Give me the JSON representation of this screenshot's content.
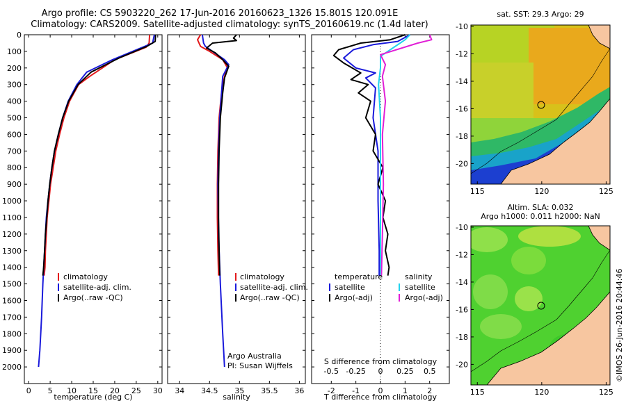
{
  "header": {
    "line1": "Argo profile: CS 5903220_262 17-Jun-2016 20160623_1326 15.801S 120.091E",
    "line2": "Climatology: CARS2009. Satellite-adjusted climatology: synTS_20160619.nc (1.4d later)"
  },
  "colors": {
    "climatology": "#e31a1c",
    "satellite": "#1a1adb",
    "argo": "#000000",
    "salinity_satellite": "#22d3ee",
    "salinity_argo": "#e11fd6",
    "land": "#f7c6a0"
  },
  "chart_data": [
    {
      "type": "line",
      "name": "temperature-panel",
      "xlabel": "temperature (deg C)",
      "ylabel": "",
      "xlim": [
        -1,
        31
      ],
      "ylim": [
        0,
        2100
      ],
      "y_inverted": true,
      "xticks": [
        0,
        5,
        10,
        15,
        20,
        25,
        30
      ],
      "yticks": [
        0,
        100,
        200,
        300,
        400,
        500,
        600,
        700,
        800,
        900,
        1000,
        1100,
        1200,
        1300,
        1400,
        1500,
        1600,
        1700,
        1800,
        1900,
        2000
      ],
      "legend": [
        "climatology",
        "satellite-adj. clim.",
        "Argo(..raw -QC)"
      ],
      "series": [
        {
          "name": "climatology",
          "color": "#e31a1c",
          "points": [
            [
              28.1,
              0
            ],
            [
              28.0,
              50
            ],
            [
              27.3,
              75
            ],
            [
              20,
              150
            ],
            [
              14.2,
              250
            ],
            [
              11.6,
              300
            ],
            [
              9.5,
              400
            ],
            [
              8.2,
              500
            ],
            [
              7.2,
              600
            ],
            [
              6.3,
              700
            ],
            [
              5.7,
              800
            ],
            [
              5.1,
              900
            ],
            [
              4.7,
              1000
            ],
            [
              4.3,
              1100
            ],
            [
              4.1,
              1200
            ],
            [
              3.9,
              1300
            ],
            [
              3.8,
              1400
            ],
            [
              3.6,
              1450
            ]
          ]
        },
        {
          "name": "satellite-adj. clim.",
          "color": "#1a1adb",
          "points": [
            [
              29.2,
              0
            ],
            [
              28.8,
              50
            ],
            [
              26.5,
              75
            ],
            [
              19.5,
              150
            ],
            [
              13.5,
              225
            ],
            [
              11.2,
              300
            ],
            [
              9.2,
              400
            ],
            [
              7.9,
              500
            ],
            [
              6.9,
              600
            ],
            [
              6.0,
              700
            ],
            [
              5.4,
              800
            ],
            [
              4.9,
              900
            ],
            [
              4.5,
              1000
            ],
            [
              4.1,
              1100
            ],
            [
              3.9,
              1200
            ],
            [
              3.7,
              1300
            ],
            [
              3.5,
              1400
            ],
            [
              3.3,
              1500
            ],
            [
              3.0,
              1700
            ],
            [
              2.6,
              1900
            ],
            [
              2.3,
              2000
            ]
          ]
        },
        {
          "name": "Argo(..raw -QC)",
          "color": "#000000",
          "points": [
            [
              29.5,
              0
            ],
            [
              29.4,
              40
            ],
            [
              27.5,
              70
            ],
            [
              21.0,
              140
            ],
            [
              14.5,
              225
            ],
            [
              11.5,
              300
            ],
            [
              9.3,
              400
            ],
            [
              7.9,
              500
            ],
            [
              6.9,
              600
            ],
            [
              6.0,
              700
            ],
            [
              5.4,
              800
            ],
            [
              4.9,
              900
            ],
            [
              4.5,
              1000
            ],
            [
              4.2,
              1100
            ],
            [
              3.9,
              1200
            ],
            [
              3.7,
              1300
            ],
            [
              3.5,
              1400
            ],
            [
              3.3,
              1450
            ]
          ]
        }
      ]
    },
    {
      "type": "line",
      "name": "salinity-panel",
      "xlabel": "salinity",
      "xlim": [
        33.8,
        36.1
      ],
      "ylim": [
        0,
        2100
      ],
      "y_inverted": true,
      "xticks": [
        34,
        34.5,
        35,
        35.5,
        36
      ],
      "legend": [
        "climatology",
        "satellite-adj. clim.",
        "Argo(..raw -QC)"
      ],
      "annotation": [
        "Argo Australia",
        "PI: Susan Wijffels"
      ],
      "series": [
        {
          "name": "climatology",
          "color": "#e31a1c",
          "points": [
            [
              34.35,
              0
            ],
            [
              34.3,
              30
            ],
            [
              34.35,
              70
            ],
            [
              34.5,
              100
            ],
            [
              34.72,
              150
            ],
            [
              34.8,
              200
            ],
            [
              34.75,
              250
            ],
            [
              34.7,
              350
            ],
            [
              34.66,
              500
            ],
            [
              34.64,
              700
            ],
            [
              34.63,
              900
            ],
            [
              34.63,
              1100
            ],
            [
              34.64,
              1300
            ],
            [
              34.65,
              1450
            ]
          ]
        },
        {
          "name": "satellite-adj. clim.",
          "color": "#1a1adb",
          "points": [
            [
              34.38,
              0
            ],
            [
              34.4,
              50
            ],
            [
              34.43,
              70
            ],
            [
              34.75,
              150
            ],
            [
              34.82,
              180
            ],
            [
              34.72,
              250
            ],
            [
              34.7,
              350
            ],
            [
              34.67,
              500
            ],
            [
              34.65,
              700
            ],
            [
              34.64,
              900
            ],
            [
              34.65,
              1200
            ],
            [
              34.68,
              1500
            ],
            [
              34.72,
              1800
            ],
            [
              34.75,
              2000
            ]
          ]
        },
        {
          "name": "Argo(..raw -QC)",
          "color": "#000000",
          "points": [
            [
              34.95,
              0
            ],
            [
              34.9,
              20
            ],
            [
              34.95,
              35
            ],
            [
              34.55,
              50
            ],
            [
              34.45,
              80
            ],
            [
              34.6,
              110
            ],
            [
              34.72,
              150
            ],
            [
              34.82,
              190
            ],
            [
              34.75,
              260
            ],
            [
              34.72,
              350
            ],
            [
              34.68,
              500
            ],
            [
              34.66,
              700
            ],
            [
              34.65,
              900
            ],
            [
              34.65,
              1100
            ],
            [
              34.66,
              1300
            ],
            [
              34.67,
              1450
            ]
          ]
        }
      ]
    },
    {
      "type": "line",
      "name": "difference-panel",
      "xlabel": "T difference from climatology",
      "x2label": "S difference from climatology",
      "xlim": [
        -2.8,
        2.8
      ],
      "ylim": [
        0,
        2100
      ],
      "y_inverted": true,
      "xticks": [
        -2,
        -1,
        0,
        1,
        2
      ],
      "x2ticks_labels": [
        "-0.5",
        "-0.25",
        "0",
        "0.25",
        "0.5"
      ],
      "legend_title_left": "temperature",
      "legend_title_right": "salinity",
      "legend": [
        "satellite",
        "Argo(-adj)",
        "satellite",
        "Argo(-adj)"
      ],
      "series": [
        {
          "name": "temperature satellite",
          "color": "#1a1adb",
          "points": [
            [
              1.2,
              0
            ],
            [
              0.7,
              40
            ],
            [
              -0.3,
              60
            ],
            [
              -1.1,
              90
            ],
            [
              -1.5,
              140
            ],
            [
              -1.0,
              200
            ],
            [
              -0.2,
              230
            ],
            [
              -0.6,
              260
            ],
            [
              -0.2,
              320
            ],
            [
              -0.3,
              500
            ],
            [
              -0.1,
              700
            ],
            [
              -0.1,
              1000
            ],
            [
              -0.05,
              1300
            ],
            [
              -0.05,
              1450
            ]
          ]
        },
        {
          "name": "temperature Argo(-adj)",
          "color": "#000000",
          "points": [
            [
              1.0,
              0
            ],
            [
              0.4,
              30
            ],
            [
              -0.8,
              50
            ],
            [
              -1.7,
              90
            ],
            [
              -1.9,
              125
            ],
            [
              -1.5,
              170
            ],
            [
              -0.8,
              230
            ],
            [
              -1.2,
              270
            ],
            [
              -0.5,
              300
            ],
            [
              -0.9,
              350
            ],
            [
              -0.4,
              400
            ],
            [
              -0.6,
              500
            ],
            [
              -0.2,
              600
            ],
            [
              -0.3,
              700
            ],
            [
              0.1,
              800
            ],
            [
              -0.1,
              900
            ],
            [
              0.2,
              1000
            ],
            [
              0.1,
              1100
            ],
            [
              0.3,
              1200
            ],
            [
              0.2,
              1300
            ],
            [
              0.35,
              1400
            ],
            [
              0.3,
              1450
            ]
          ]
        },
        {
          "name": "salinity satellite",
          "color": "#22d3ee",
          "points": [
            [
              0.3,
              0
            ],
            [
              0.25,
              30
            ],
            [
              0.2,
              50
            ],
            [
              0.0,
              130
            ],
            [
              0.0,
              200
            ],
            [
              -0.02,
              300
            ],
            [
              0.0,
              500
            ],
            [
              0.0,
              800
            ],
            [
              0.0,
              1100
            ],
            [
              0.0,
              1450
            ]
          ]
        },
        {
          "name": "salinity Argo(-adj)",
          "color": "#e11fd6",
          "points": [
            [
              0.5,
              0
            ],
            [
              0.52,
              30
            ],
            [
              0.38,
              50
            ],
            [
              0.0,
              120
            ],
            [
              0.05,
              180
            ],
            [
              0.02,
              250
            ],
            [
              0.05,
              400
            ],
            [
              0.02,
              600
            ],
            [
              0.03,
              900
            ],
            [
              0.02,
              1200
            ],
            [
              0.01,
              1450
            ]
          ]
        }
      ]
    },
    {
      "type": "heatmap",
      "name": "sst-map",
      "title": "sat. SST: 29.3 Argo: 29",
      "xlim": [
        114.5,
        125.3
      ],
      "ylim": [
        -21.5,
        -9.9
      ],
      "xticks": [
        115,
        120,
        125
      ],
      "yticks": [
        -10,
        -12,
        -14,
        -16,
        -18,
        -20
      ],
      "marker": {
        "lon": 120.091,
        "lat": -15.801
      }
    },
    {
      "type": "heatmap",
      "name": "sla-map",
      "title": "Altim. SLA: 0.032",
      "subtitle": "Argo h1000: 0.011 h2000: NaN",
      "xlim": [
        114.5,
        125.3
      ],
      "ylim": [
        -21.5,
        -9.9
      ],
      "xticks": [
        115,
        120,
        125
      ],
      "yticks": [
        -10,
        -12,
        -14,
        -16,
        -18,
        -20
      ],
      "marker": {
        "lon": 120.091,
        "lat": -15.801
      }
    }
  ],
  "footer": {
    "credit": "©IMOS 26-Jun-2016 20:44:46"
  }
}
